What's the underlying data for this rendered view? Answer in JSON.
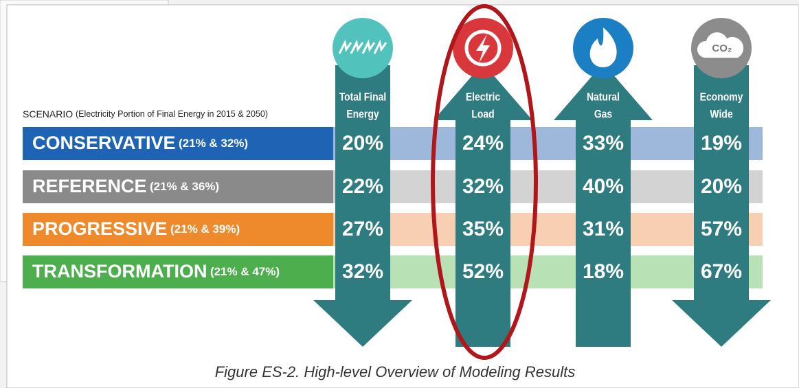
{
  "header": {
    "title": "SCENARIO",
    "subtitle": "(Electricity Portion of Final Energy in 2015 & 2050)"
  },
  "scenarios": [
    {
      "name": "CONSERVATIVE",
      "note": "(21% & 32%)",
      "color": "#1f63b4",
      "light": "#9db8db"
    },
    {
      "name": "REFERENCE",
      "note": "(21% & 36%)",
      "color": "#8a8a8a",
      "light": "#d3d3d3"
    },
    {
      "name": "PROGRESSIVE",
      "note": "(21% & 39%)",
      "color": "#ef8a2c",
      "light": "#f8cfb3"
    },
    {
      "name": "TRANSFORMATION",
      "note": "(21% & 47%)",
      "color": "#4cae4c",
      "light": "#b9e1b6"
    }
  ],
  "columns": [
    {
      "label": [
        "Total Final",
        "Energy"
      ],
      "direction": "down",
      "icon_color": "#52c2bd"
    },
    {
      "label": [
        "Electric",
        "Load"
      ],
      "direction": "up",
      "icon_color": "#d8383b"
    },
    {
      "label": [
        "Natural",
        "Gas"
      ],
      "direction": "up",
      "icon_color": "#1b7fc3"
    },
    {
      "label": [
        "Economy",
        "Wide"
      ],
      "direction": "down",
      "icon_color": "#8c8c8c",
      "icon_text": "CO₂"
    }
  ],
  "table": {
    "rows": [
      [
        "20%",
        "24%",
        "33%",
        "19%"
      ],
      [
        "22%",
        "32%",
        "40%",
        "20%"
      ],
      [
        "27%",
        "35%",
        "31%",
        "57%"
      ],
      [
        "32%",
        "52%",
        "18%",
        "67%"
      ]
    ]
  },
  "caption": "Figure ES-2. High-level Overview of Modeling Results"
}
